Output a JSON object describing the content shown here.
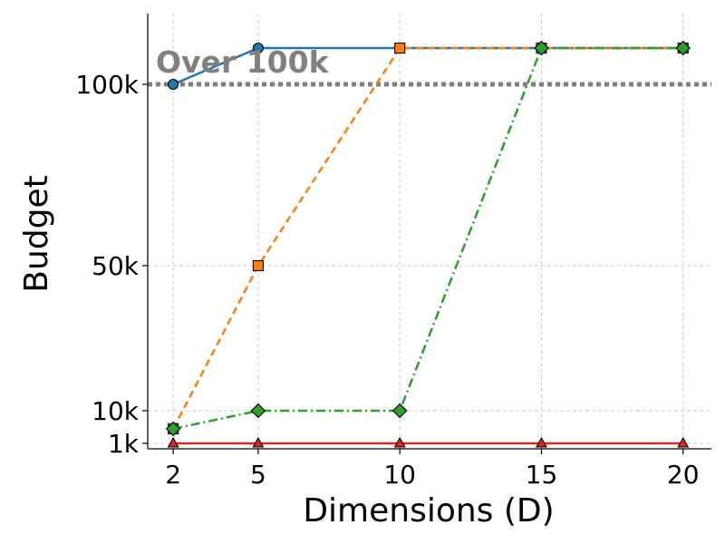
{
  "chart_data": {
    "type": "line",
    "title": "",
    "xlabel": "Dimensions (D)",
    "ylabel": "Budget",
    "x": [
      2,
      5,
      10,
      15,
      20
    ],
    "xlim": [
      1.1,
      21.0
    ],
    "ylim": [
      -0.5,
      119.5
    ],
    "y_ticks": [
      {
        "value": 1,
        "label": "1k"
      },
      {
        "value": 10,
        "label": "10k"
      },
      {
        "value": 50,
        "label": "50k"
      },
      {
        "value": 100,
        "label": "100k"
      }
    ],
    "x_ticks": [
      {
        "value": 2,
        "label": "2"
      },
      {
        "value": 5,
        "label": "5"
      },
      {
        "value": 10,
        "label": "10"
      },
      {
        "value": 15,
        "label": "15"
      },
      {
        "value": 20,
        "label": "20"
      }
    ],
    "grid": true,
    "reference_line": {
      "value": 100,
      "color": "#808080",
      "style": "dotted"
    },
    "annotation": {
      "text": "Over 100k",
      "color": "#808080"
    },
    "series": [
      {
        "color": "#1f77b4",
        "marker": "circle",
        "line": "solid",
        "values": [
          100,
          110,
          110,
          110,
          110
        ]
      },
      {
        "color": "#ff7f0e",
        "marker": "square",
        "line": "dashed",
        "values": [
          5,
          50,
          110,
          110,
          110
        ]
      },
      {
        "color": "#2ca02c",
        "marker": "diamond",
        "line": "dashdot",
        "values": [
          5,
          10,
          10,
          110,
          110
        ]
      },
      {
        "color": "#d62728",
        "marker": "triangle",
        "line": "solid",
        "values": [
          1,
          1,
          1,
          1,
          1
        ]
      }
    ]
  }
}
